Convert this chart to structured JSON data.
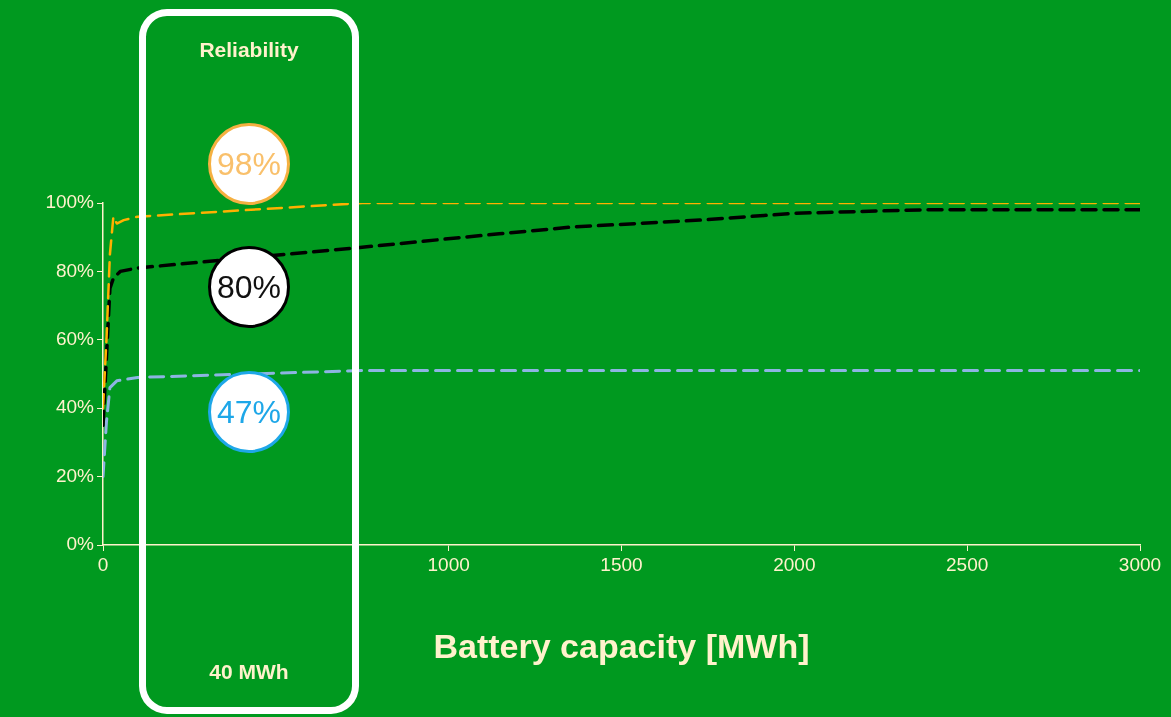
{
  "chart_data": {
    "type": "line",
    "xlabel": "Battery capacity [MWh]",
    "xlim": [
      0,
      3000
    ],
    "xticks": [
      0,
      1000,
      1500,
      2000,
      2500,
      3000
    ],
    "ylim": [
      0,
      100
    ],
    "yticks": [
      {
        "value": 0,
        "label": "0%"
      },
      {
        "value": 20,
        "label": "20%"
      },
      {
        "value": 40,
        "label": "40%"
      },
      {
        "value": 60,
        "label": "60%"
      },
      {
        "value": 80,
        "label": "80%"
      },
      {
        "value": 100,
        "label": "100%"
      }
    ],
    "grid": false,
    "legend": false,
    "marker": "none",
    "line_style": "dashed",
    "series": [
      {
        "color": "#ffb000",
        "x": [
          0,
          10,
          20,
          30,
          40,
          60,
          100,
          750,
          3000
        ],
        "values": [
          40,
          60,
          85,
          96,
          94,
          95,
          96,
          100,
          100
        ]
      },
      {
        "color": "#000000",
        "x": [
          0,
          10,
          20,
          30,
          50,
          100,
          743,
          1146,
          1360,
          1727,
          2002,
          2369,
          3000
        ],
        "values": [
          35,
          55,
          75,
          78,
          80,
          81,
          87,
          91,
          93,
          95,
          97,
          98,
          98
        ]
      },
      {
        "color": "#8db4e2",
        "x": [
          0,
          10,
          20,
          40,
          100,
          750,
          3000
        ],
        "values": [
          20,
          36,
          46,
          48,
          49,
          51,
          51
        ]
      }
    ],
    "annotations": [
      "Reliability",
      "98%",
      "80%",
      "47%",
      "40 MWh"
    ]
  }
}
